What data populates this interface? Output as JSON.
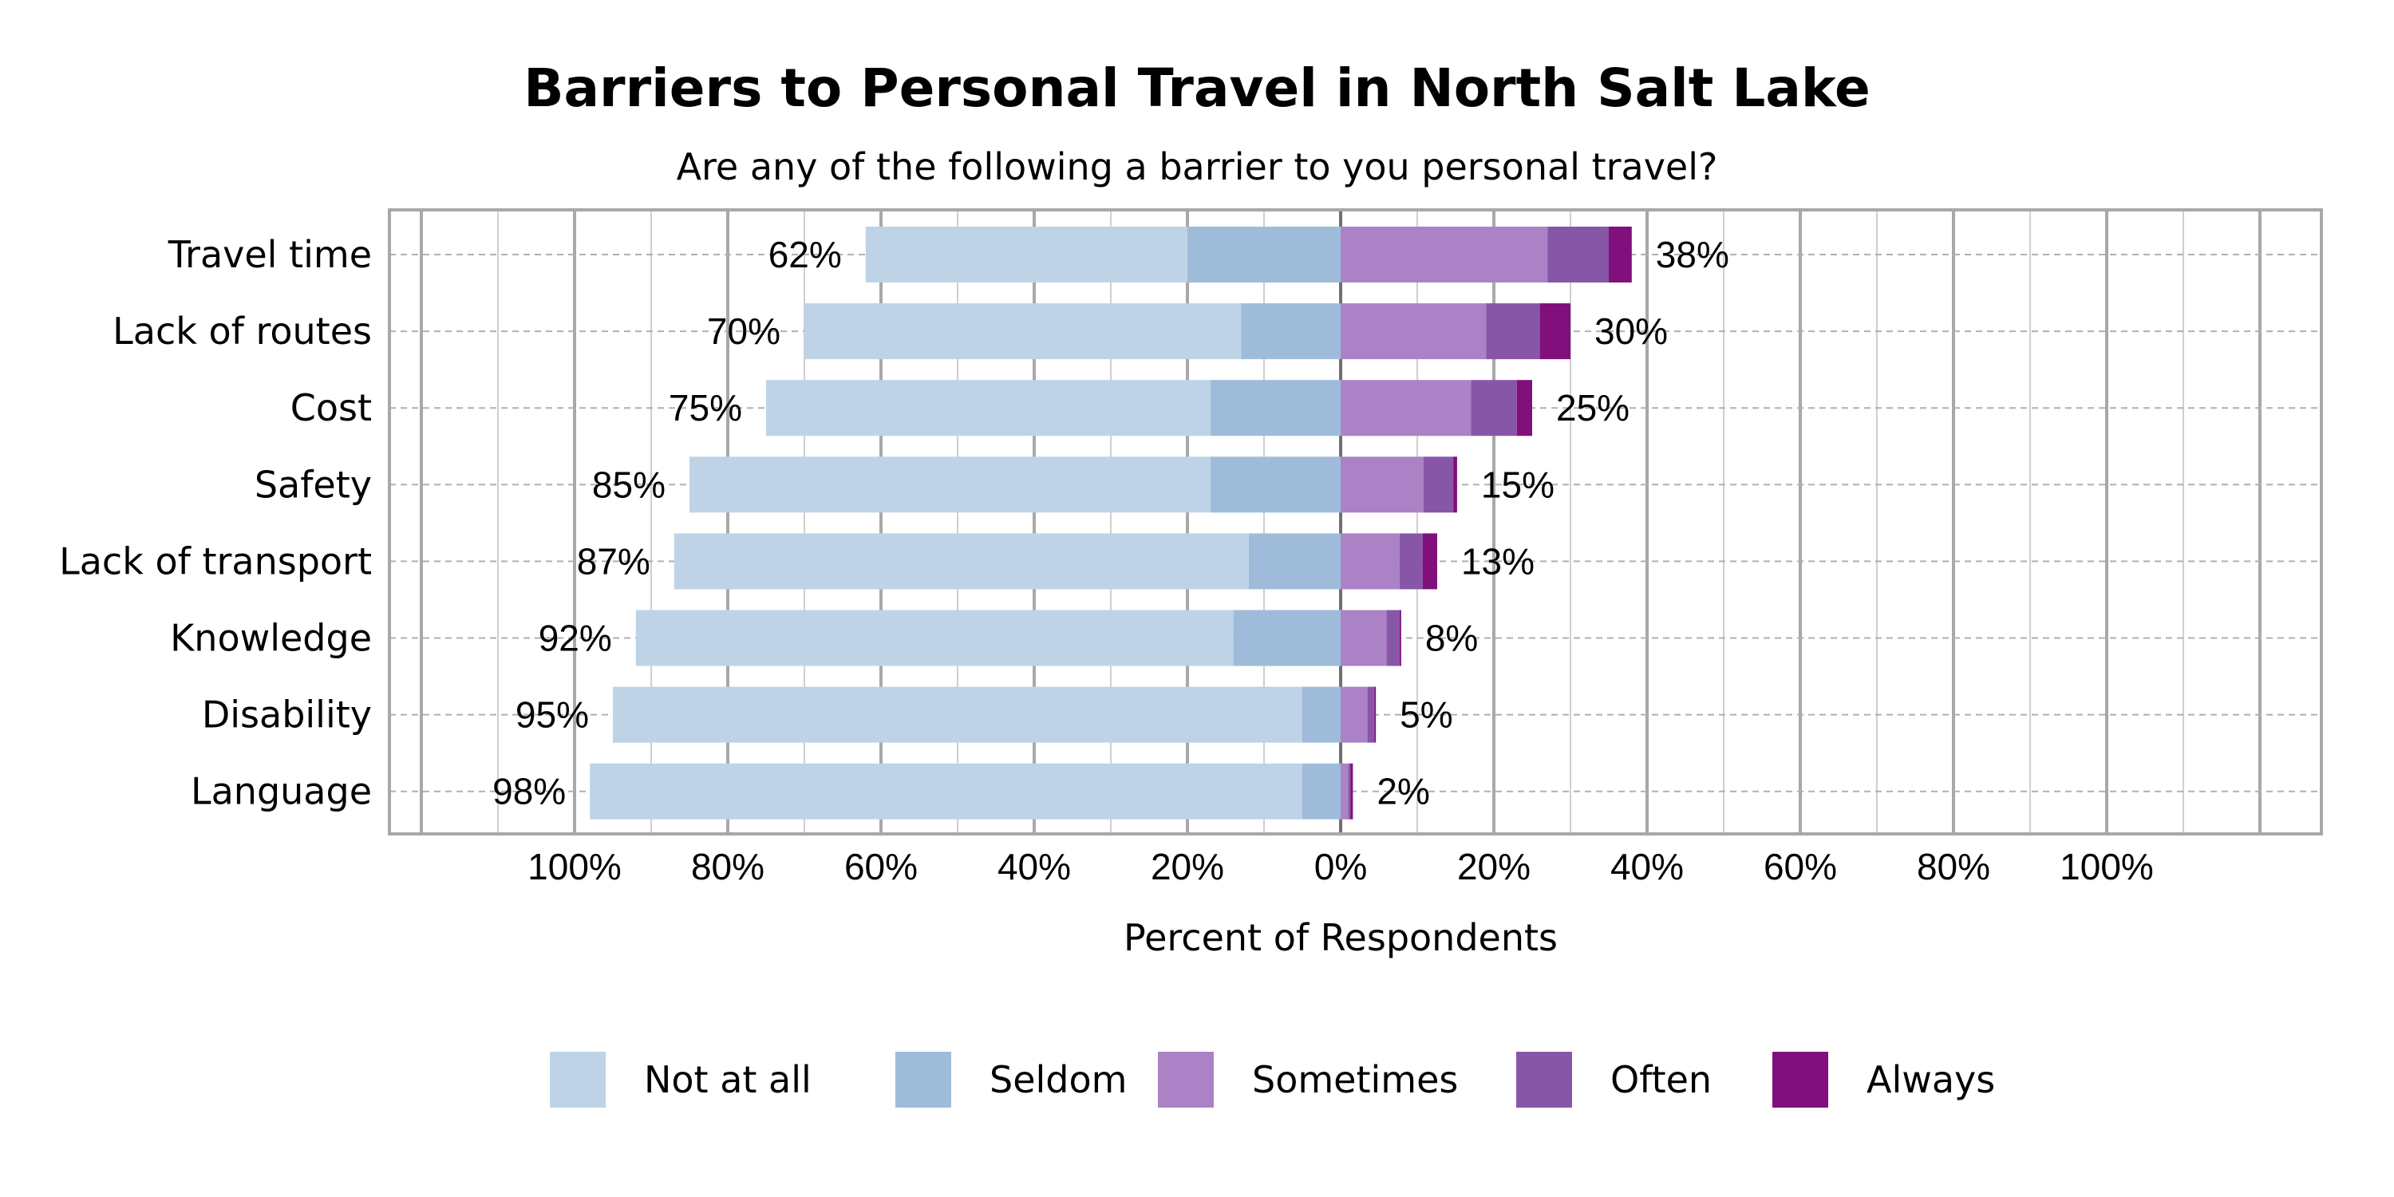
{
  "chart_data": {
    "type": "bar",
    "orientation": "horizontal",
    "stacked": "diverging",
    "title": "Barriers to Personal Travel in North Salt Lake",
    "subtitle": "Are any of the following a barrier to you personal travel?",
    "xlabel": "Percent of Respondents",
    "ylabel": "",
    "xtick_labels": [
      "100%",
      "80%",
      "60%",
      "40%",
      "20%",
      "0%",
      "20%",
      "40%",
      "60%",
      "80%",
      "100%"
    ],
    "grid": true,
    "legend_position": "bottom",
    "categories": [
      "Travel time",
      "Lack of routes",
      "Cost",
      "Safety",
      "Lack of transport",
      "Knowledge",
      "Disability",
      "Language"
    ],
    "series": [
      {
        "name": "Not at all",
        "side": "left",
        "color": "#bfd3e6",
        "values": [
          42,
          57,
          58,
          68,
          75,
          78,
          90,
          93
        ]
      },
      {
        "name": "Seldom",
        "side": "left",
        "color": "#9ebcda",
        "values": [
          20,
          13,
          17,
          17,
          12,
          14,
          5,
          5
        ]
      },
      {
        "name": "Sometimes",
        "side": "right",
        "color": "#ab82c5",
        "values": [
          27,
          19,
          17,
          10.8,
          7.7,
          6.0,
          3.5,
          1.0
        ]
      },
      {
        "name": "Often",
        "side": "right",
        "color": "#8856a7",
        "values": [
          8,
          7,
          6,
          3.9,
          3.0,
          1.7,
          0.9,
          0.3
        ]
      },
      {
        "name": "Always",
        "side": "right",
        "color": "#810f7c",
        "values": [
          3,
          4,
          2,
          0.5,
          1.9,
          0.2,
          0.2,
          0.3
        ]
      }
    ],
    "left_totals": [
      "62%",
      "70%",
      "75%",
      "85%",
      "87%",
      "92%",
      "95%",
      "98%"
    ],
    "right_totals": [
      "38%",
      "30%",
      "25%",
      "15%",
      "13%",
      "8%",
      "5%",
      "2%"
    ]
  }
}
